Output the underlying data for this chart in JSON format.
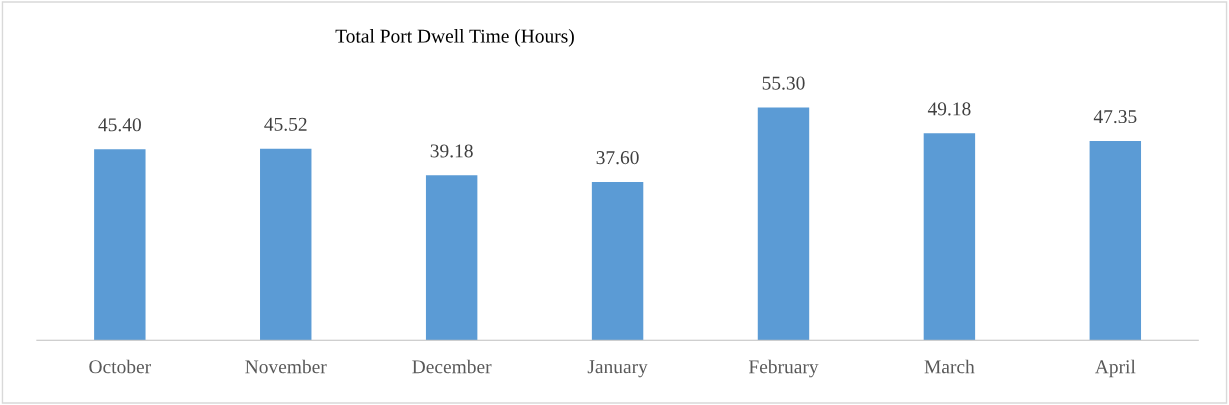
{
  "chart_data": {
    "type": "bar",
    "title": "Total Port Dwell Time (Hours)",
    "categories": [
      "October",
      "November",
      "December",
      "January",
      "February",
      "March",
      "April"
    ],
    "values": [
      45.4,
      45.52,
      39.18,
      37.6,
      55.3,
      49.18,
      47.35
    ],
    "value_labels": [
      "45.40",
      "45.52",
      "39.18",
      "37.60",
      "55.30",
      "49.18",
      "47.35"
    ],
    "color": "#5b9bd5",
    "grid": false,
    "legend": false,
    "tick_labels": "x"
  }
}
